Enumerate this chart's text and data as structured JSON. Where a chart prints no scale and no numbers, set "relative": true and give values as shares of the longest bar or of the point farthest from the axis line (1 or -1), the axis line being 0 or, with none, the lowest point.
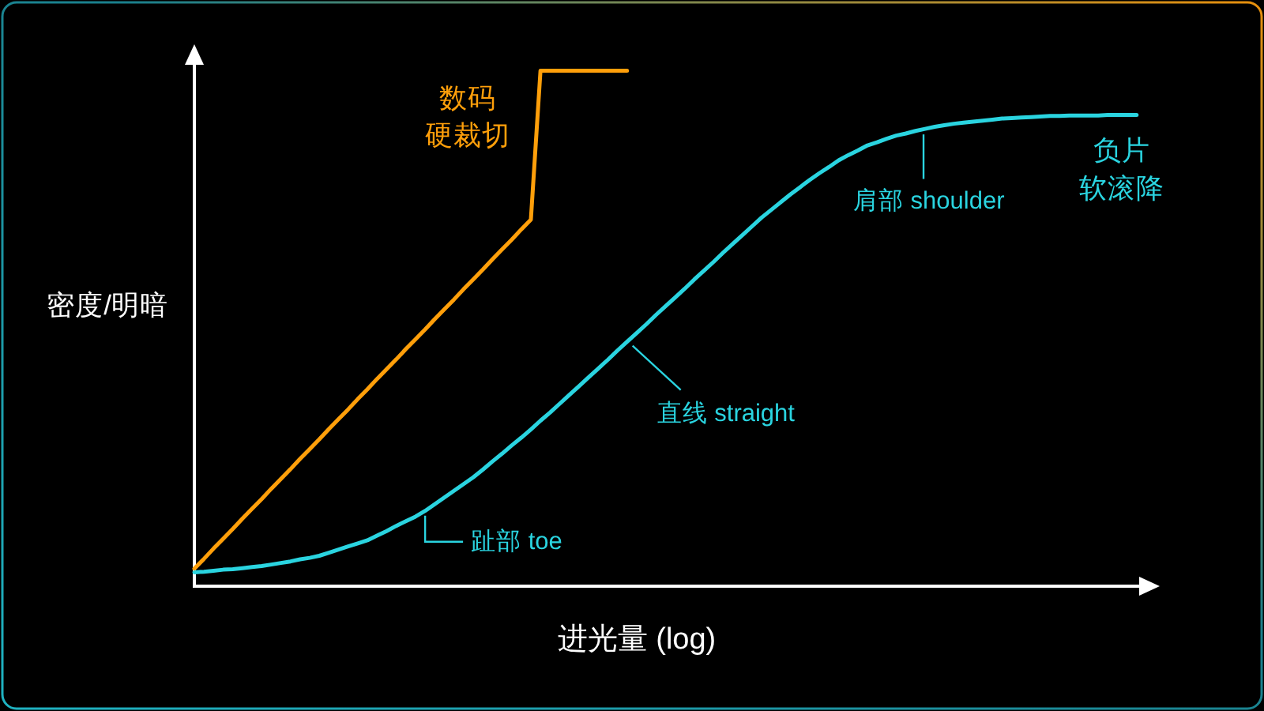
{
  "chart_data": {
    "type": "line",
    "relative": true,
    "xlabel": "进光量 (log)",
    "ylabel": "密度/明暗",
    "categories": [
      null,
      null,
      null,
      null,
      null,
      null,
      null,
      null,
      null,
      null,
      null,
      null,
      null,
      null,
      null,
      null,
      null,
      null,
      null,
      null,
      null,
      null,
      null,
      null,
      null,
      null,
      null,
      null,
      null,
      null,
      null,
      null,
      null,
      null,
      null,
      null,
      null,
      null,
      null,
      null,
      null,
      null,
      null,
      null,
      null,
      null,
      null,
      null,
      null,
      null,
      null,
      null,
      null,
      null,
      null,
      null,
      null,
      null,
      null,
      null,
      null,
      null,
      null,
      null,
      null,
      null,
      null,
      null,
      null,
      null,
      null,
      null,
      null,
      null,
      null,
      null,
      null,
      null,
      null,
      null,
      null,
      null,
      null,
      null,
      null,
      null,
      null,
      null,
      null,
      null,
      null,
      null,
      null,
      null,
      null,
      null,
      null,
      null,
      null
    ],
    "series": [
      {
        "name": "数码硬裁切",
        "color": "#ff9f0a",
        "values": [
          0.034,
          0.053,
          0.073,
          0.092,
          0.111,
          0.131,
          0.15,
          0.169,
          0.189,
          0.208,
          0.227,
          0.247,
          0.266,
          0.285,
          0.305,
          0.324,
          0.343,
          0.363,
          0.382,
          0.402,
          0.421,
          0.44,
          0.46,
          0.479,
          0.498,
          0.518,
          0.537,
          0.556,
          0.576,
          0.595,
          0.614,
          0.634,
          0.653,
          0.672,
          0.692,
          0.711,
          1,
          1,
          1,
          1,
          1,
          1,
          1,
          1,
          1,
          1,
          null,
          null,
          null,
          null,
          null,
          null,
          null,
          null,
          null,
          null,
          null,
          null,
          null,
          null,
          null,
          null,
          null,
          null,
          null,
          null,
          null,
          null,
          null,
          null,
          null,
          null,
          null,
          null,
          null,
          null,
          null,
          null,
          null,
          null,
          null,
          null,
          null,
          null,
          null,
          null,
          null,
          null,
          null,
          null,
          null,
          null,
          null,
          null,
          null,
          null,
          null,
          null,
          null
        ]
      },
      {
        "name": "负片软滚降",
        "color": "#2ad4e0",
        "values": [
          0.027,
          0.028,
          0.03,
          0.032,
          0.033,
          0.035,
          0.037,
          0.039,
          0.042,
          0.045,
          0.048,
          0.052,
          0.055,
          0.059,
          0.065,
          0.071,
          0.077,
          0.083,
          0.089,
          0.098,
          0.107,
          0.117,
          0.126,
          0.135,
          0.146,
          0.159,
          0.172,
          0.185,
          0.198,
          0.211,
          0.226,
          0.242,
          0.257,
          0.273,
          0.288,
          0.304,
          0.321,
          0.337,
          0.354,
          0.371,
          0.388,
          0.405,
          0.422,
          0.439,
          0.457,
          0.474,
          0.491,
          0.508,
          0.526,
          0.543,
          0.56,
          0.577,
          0.595,
          0.612,
          0.629,
          0.647,
          0.664,
          0.681,
          0.698,
          0.715,
          0.73,
          0.745,
          0.76,
          0.774,
          0.788,
          0.801,
          0.813,
          0.826,
          0.836,
          0.845,
          0.855,
          0.861,
          0.868,
          0.874,
          0.878,
          0.883,
          0.887,
          0.891,
          0.894,
          0.897,
          0.899,
          0.901,
          0.903,
          0.905,
          0.907,
          0.908,
          0.909,
          0.91,
          0.911,
          0.912,
          0.912,
          0.913,
          0.913,
          0.913,
          0.913,
          0.914,
          0.914,
          0.914,
          0.914
        ]
      }
    ],
    "annotations": [
      "趾部 toe",
      "直线 straight",
      "肩部 shoulder"
    ]
  }
}
